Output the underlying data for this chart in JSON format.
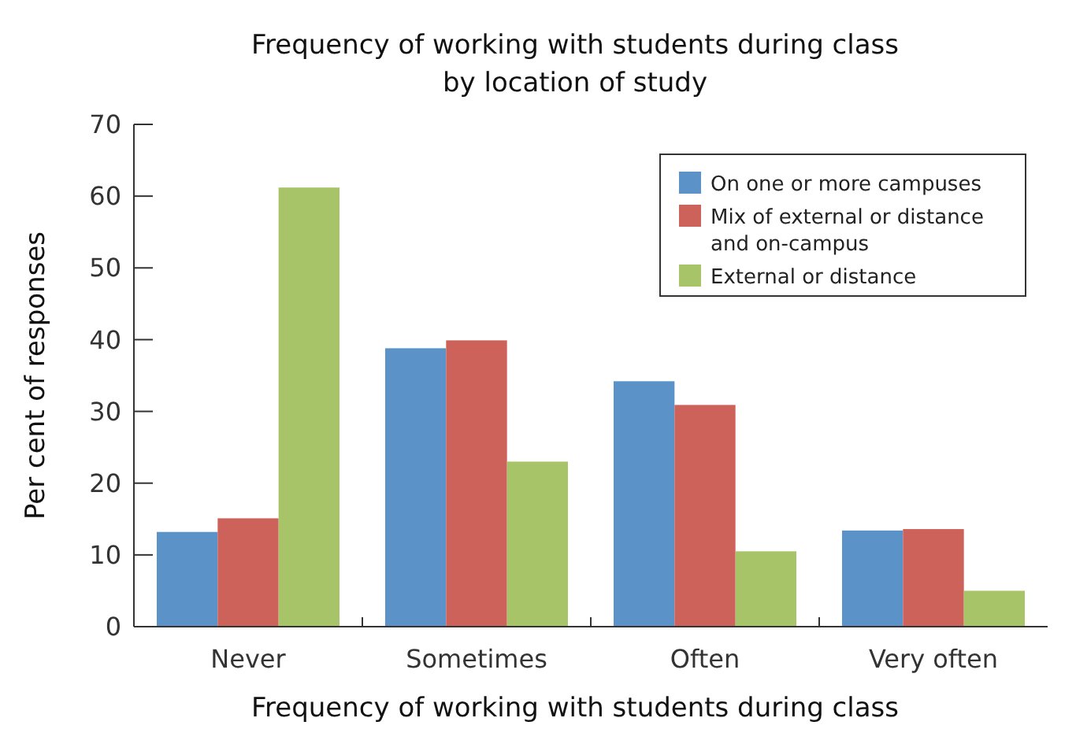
{
  "chart_data": {
    "type": "bar",
    "title": "Frequency of working with students during class\nby location of study",
    "xlabel": "Frequency of working with students during class",
    "ylabel": "Per cent of responses",
    "categories": [
      "Never",
      "Sometimes",
      "Often",
      "Very often"
    ],
    "series": [
      {
        "name": "On one or more campuses",
        "color": "#5b93c8",
        "values": [
          13.2,
          38.8,
          34.2,
          13.4
        ]
      },
      {
        "name": "Mix of external or distance\nand on-campus",
        "color": "#cd625a",
        "values": [
          15.1,
          39.9,
          30.9,
          13.6
        ]
      },
      {
        "name": "External or distance",
        "color": "#a8c468",
        "values": [
          61.2,
          23.0,
          10.5,
          5.0
        ]
      }
    ],
    "ylim": [
      0,
      70
    ],
    "yticks": [
      0,
      10,
      20,
      30,
      40,
      50,
      60,
      70
    ],
    "legend": "top right"
  }
}
